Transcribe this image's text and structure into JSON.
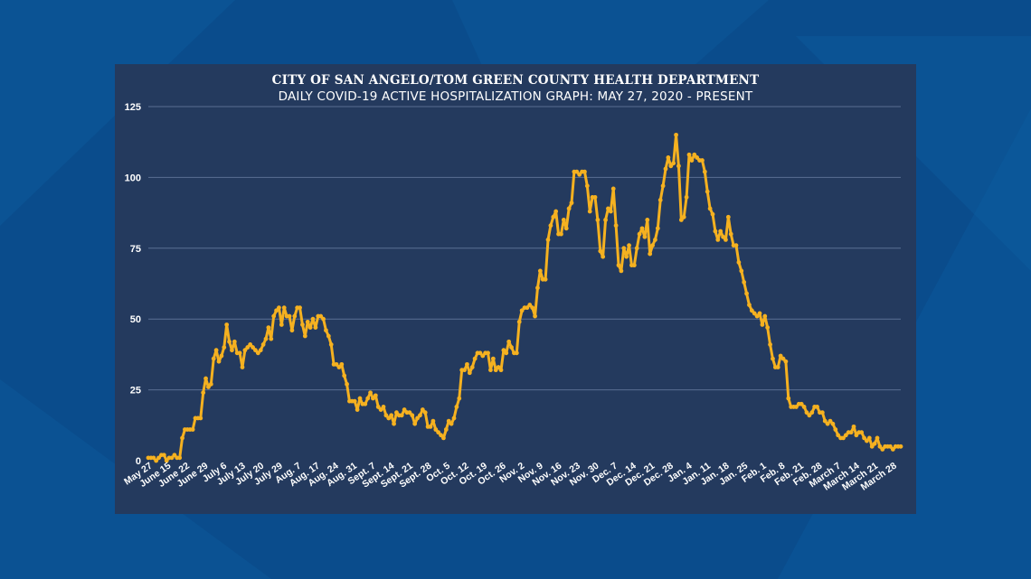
{
  "colors": {
    "background": "#0a4c8c",
    "panel": "#243a5e",
    "gridline": "#5a6f93",
    "line": "#f5b120",
    "text": "#ffffff"
  },
  "chart_data": {
    "type": "line",
    "title": "CITY OF SAN ANGELO/TOM GREEN COUNTY HEALTH DEPARTMENT",
    "subtitle": "DAILY COVID-19 ACTIVE HOSPITALIZATION GRAPH: MAY 27, 2020 - PRESENT",
    "xlabel": "",
    "ylabel": "",
    "ylim": [
      0,
      125
    ],
    "yticks": [
      0,
      25,
      50,
      75,
      100,
      125
    ],
    "grid": true,
    "x_tick_labels": [
      "May 27",
      "June 15",
      "June 22",
      "June 29",
      "July 6",
      "July 13",
      "July 20",
      "July 29",
      "Aug. 7",
      "Aug. 17",
      "Aug. 24",
      "Aug. 31",
      "Sept. 7",
      "Sept. 14",
      "Sept. 21",
      "Sept. 28",
      "Oct. 5",
      "Oct. 12",
      "Oct. 19",
      "Oct. 26",
      "Nov. 2",
      "Nov. 9",
      "Nov. 16",
      "Nov. 23",
      "Nov. 30",
      "Dec. 7",
      "Dec. 14",
      "Dec. 21",
      "Dec. 28",
      "Jan. 4",
      "Jan. 11",
      "Jan. 18",
      "Jan. 25",
      "Feb. 1",
      "Feb. 8",
      "Feb. 21",
      "Feb. 28",
      "March 7",
      "March 14",
      "March 21",
      "March 28"
    ],
    "series": [
      {
        "values": [
          1,
          1,
          1,
          0,
          1,
          2,
          2,
          0,
          1,
          1,
          2,
          1,
          1,
          8,
          11,
          11,
          11,
          11,
          15,
          15,
          15,
          24,
          29,
          26,
          27,
          36,
          39,
          35,
          37,
          40,
          48,
          42,
          39,
          42,
          38,
          38,
          33,
          39,
          40,
          41,
          40,
          39,
          38,
          39,
          41,
          43,
          47,
          43,
          51,
          53,
          54,
          48,
          54,
          51,
          51,
          46,
          51,
          54,
          54,
          48,
          44,
          49,
          47,
          50,
          47,
          51,
          51,
          50,
          46,
          44,
          41,
          34,
          34,
          33,
          34,
          30,
          27,
          21,
          21,
          21,
          18,
          22,
          20,
          20,
          22,
          24,
          22,
          23,
          19,
          18,
          19,
          16,
          15,
          16,
          13,
          17,
          16,
          16,
          18,
          17,
          17,
          16,
          13,
          15,
          16,
          18,
          17,
          12,
          12,
          14,
          11,
          10,
          9,
          8,
          11,
          14,
          13,
          15,
          19,
          22,
          32,
          32,
          34,
          31,
          33,
          36,
          38,
          38,
          37,
          38,
          38,
          32,
          36,
          32,
          33,
          32,
          39,
          38,
          42,
          40,
          38,
          38,
          49,
          53,
          54,
          54,
          55,
          54,
          51,
          61,
          67,
          64,
          64,
          78,
          83,
          86,
          88,
          80,
          80,
          85,
          82,
          89,
          91,
          102,
          102,
          101,
          102,
          102,
          97,
          88,
          93,
          93,
          85,
          74,
          72,
          85,
          89,
          88,
          96,
          83,
          69,
          67,
          75,
          72,
          76,
          69,
          69,
          75,
          80,
          82,
          79,
          85,
          73,
          76,
          78,
          82,
          92,
          97,
          103,
          107,
          104,
          105,
          115,
          104,
          85,
          86,
          93,
          108,
          106,
          108,
          107,
          106,
          106,
          102,
          95,
          89,
          87,
          81,
          78,
          81,
          79,
          78,
          86,
          80,
          76,
          76,
          70,
          67,
          63,
          59,
          55,
          53,
          52,
          51,
          52,
          48,
          51,
          47,
          41,
          36,
          33,
          33,
          37,
          36,
          35,
          22,
          19,
          19,
          19,
          20,
          20,
          19,
          17,
          16,
          17,
          19,
          19,
          17,
          17,
          14,
          13,
          14,
          13,
          11,
          9,
          8,
          8,
          9,
          10,
          10,
          12,
          9,
          10,
          10,
          8,
          7,
          8,
          5,
          6,
          8,
          5,
          4,
          5,
          5,
          5,
          4,
          5,
          5,
          5
        ]
      }
    ]
  }
}
